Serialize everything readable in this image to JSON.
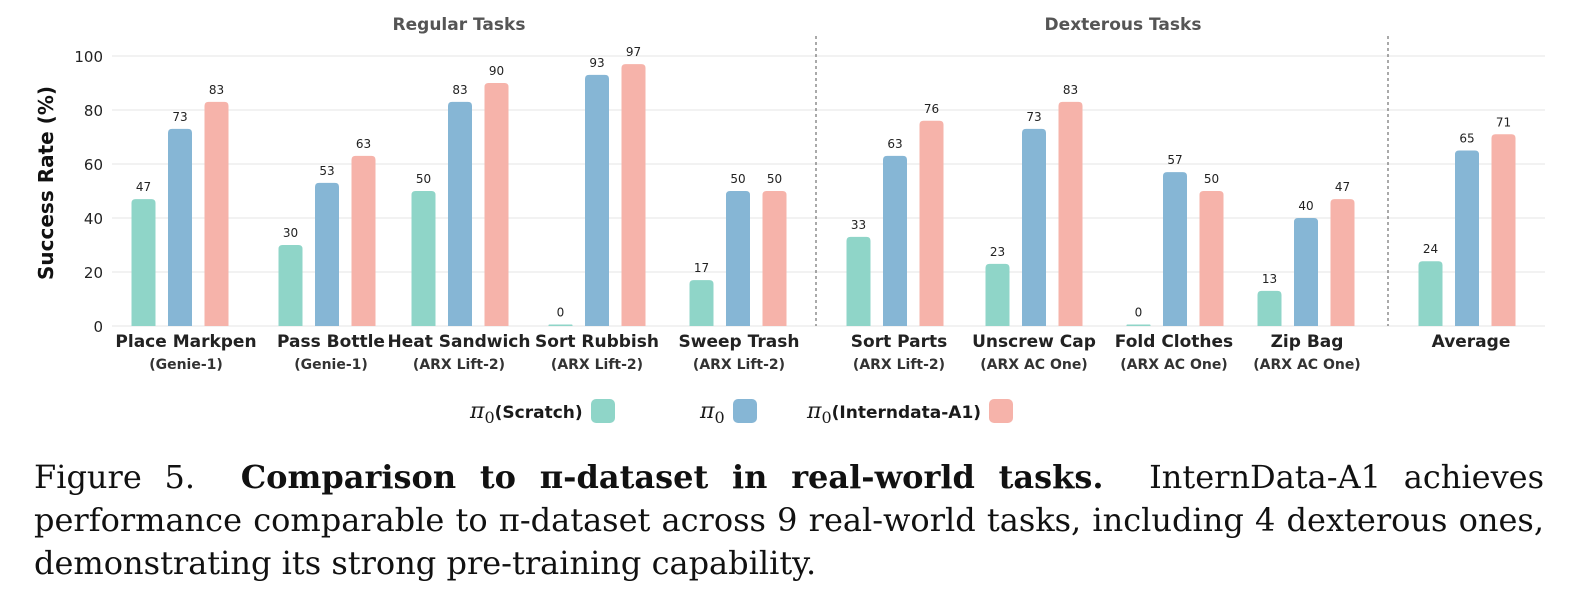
{
  "chart_data": {
    "type": "bar",
    "ylabel": "Success Rate (%)",
    "ylim": [
      0,
      100
    ],
    "yticks": [
      "0",
      "20",
      "40",
      "60",
      "80",
      "100"
    ],
    "grid": true,
    "groups": [
      {
        "label": "Regular Tasks"
      },
      {
        "label": "Dexterous Tasks"
      }
    ],
    "categories": [
      {
        "name": "Place Markpen",
        "sub": "(Genie-1)",
        "group": "Regular Tasks"
      },
      {
        "name": "Pass Bottle",
        "sub": "(Genie-1)",
        "group": "Regular Tasks"
      },
      {
        "name": "Heat Sandwich",
        "sub": "(ARX Lift-2)",
        "group": "Regular Tasks"
      },
      {
        "name": "Sort Rubbish",
        "sub": "(ARX Lift-2)",
        "group": "Regular Tasks"
      },
      {
        "name": "Sweep Trash",
        "sub": "(ARX Lift-2)",
        "group": "Regular Tasks"
      },
      {
        "name": "Sort Parts",
        "sub": "(ARX Lift-2)",
        "group": "Dexterous Tasks"
      },
      {
        "name": "Unscrew Cap",
        "sub": "(ARX AC One)",
        "group": "Dexterous Tasks"
      },
      {
        "name": "Fold Clothes",
        "sub": "(ARX AC One)",
        "group": "Dexterous Tasks"
      },
      {
        "name": "Zip Bag",
        "sub": "(ARX AC One)",
        "group": "Dexterous Tasks"
      },
      {
        "name": "Average",
        "sub": "",
        "group": ""
      }
    ],
    "series": [
      {
        "name": "π0 (Scratch)",
        "color": "#8fd5c8",
        "values": [
          47,
          30,
          50,
          0,
          17,
          33,
          23,
          0,
          13,
          24
        ]
      },
      {
        "name": "π0",
        "color": "#86b6d5",
        "values": [
          73,
          53,
          83,
          93,
          50,
          63,
          73,
          57,
          40,
          65
        ]
      },
      {
        "name": "π0 (Interndata-A1)",
        "color": "#f6b3aa",
        "values": [
          83,
          63,
          90,
          97,
          50,
          76,
          83,
          50,
          47,
          71
        ]
      }
    ],
    "legend": {
      "placement": "bottom",
      "items": [
        {
          "symbol": "π",
          "sub": "0",
          "text": "(Scratch)",
          "color": "#8fd5c8"
        },
        {
          "symbol": "π",
          "sub": "0",
          "text": "",
          "color": "#86b6d5"
        },
        {
          "symbol": "π",
          "sub": "0",
          "text": "(Interndata-A1)",
          "color": "#f6b3aa"
        }
      ]
    }
  },
  "caption": {
    "prefix": "Figure 5.",
    "bold": "Comparison to π-dataset in real-world tasks.",
    "text": "InternData-A1 achieves performance comparable to π-dataset across 9 real-world tasks, including 4 dexterous ones, demonstrating its strong pre-training capability."
  }
}
